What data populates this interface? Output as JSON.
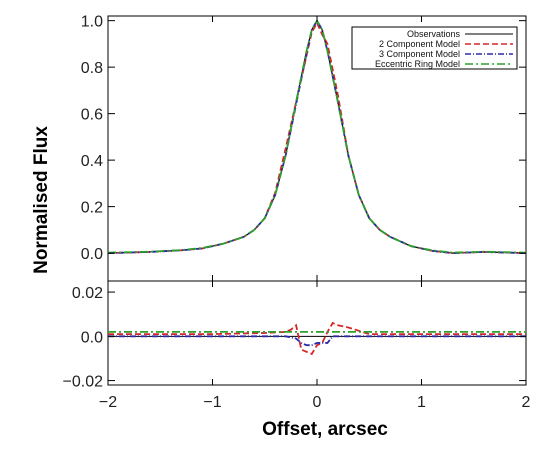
{
  "chart_data": {
    "type": "line",
    "xlabel": "Offset, arcsec",
    "ylabel": "Normalised Flux",
    "legend_position": "top-right",
    "grid": false,
    "panels": [
      {
        "id": "top",
        "xlim": [
          -2,
          2
        ],
        "ylim": [
          -0.12,
          1.02
        ],
        "x_ticks": [
          -2,
          -1,
          0,
          1,
          2
        ],
        "y_ticks": [
          0.0,
          0.2,
          0.4,
          0.6,
          0.8,
          1.0
        ],
        "y_tick_labels": [
          "0.0",
          "0.2",
          "0.4",
          "0.6",
          "0.8",
          "1.0"
        ],
        "series": [
          {
            "name": "Observations",
            "color": "#000000",
            "dash": "",
            "x": [
              -2.0,
              -1.6,
              -1.3,
              -1.1,
              -0.9,
              -0.7,
              -0.6,
              -0.5,
              -0.4,
              -0.3,
              -0.2,
              -0.1,
              -0.05,
              0.0,
              0.05,
              0.1,
              0.2,
              0.3,
              0.4,
              0.5,
              0.6,
              0.7,
              0.9,
              1.1,
              1.3,
              1.6,
              2.0
            ],
            "y": [
              0.0,
              0.005,
              0.012,
              0.02,
              0.04,
              0.07,
              0.1,
              0.15,
              0.25,
              0.42,
              0.65,
              0.87,
              0.96,
              1.0,
              0.96,
              0.87,
              0.65,
              0.42,
              0.25,
              0.15,
              0.1,
              0.07,
              0.03,
              0.01,
              0.0,
              0.005,
              0.0
            ]
          },
          {
            "name": "2 Component Model",
            "color": "#d62728",
            "dash": "6,3",
            "x": [
              -2.0,
              -1.6,
              -1.3,
              -1.1,
              -0.9,
              -0.7,
              -0.6,
              -0.5,
              -0.4,
              -0.3,
              -0.2,
              -0.1,
              -0.05,
              0.0,
              0.05,
              0.1,
              0.2,
              0.3,
              0.4,
              0.5,
              0.6,
              0.7,
              0.9,
              1.1,
              1.3,
              1.6,
              2.0
            ],
            "y": [
              0.0,
              0.005,
              0.012,
              0.02,
              0.04,
              0.07,
              0.1,
              0.15,
              0.26,
              0.45,
              0.65,
              0.85,
              0.95,
              0.99,
              0.94,
              0.9,
              0.68,
              0.42,
              0.25,
              0.15,
              0.1,
              0.07,
              0.03,
              0.01,
              0.0,
              0.005,
              0.0
            ]
          },
          {
            "name": "3 Component Model",
            "color": "#2a2aa8",
            "dash": "6,2,1,2",
            "x": [
              -2.0,
              -1.6,
              -1.3,
              -1.1,
              -0.9,
              -0.7,
              -0.6,
              -0.5,
              -0.4,
              -0.3,
              -0.2,
              -0.1,
              -0.05,
              0.0,
              0.05,
              0.1,
              0.2,
              0.3,
              0.4,
              0.5,
              0.6,
              0.7,
              0.9,
              1.1,
              1.3,
              1.6,
              2.0
            ],
            "y": [
              0.0,
              0.005,
              0.012,
              0.02,
              0.04,
              0.07,
              0.1,
              0.15,
              0.25,
              0.42,
              0.64,
              0.86,
              0.96,
              1.0,
              0.96,
              0.87,
              0.65,
              0.42,
              0.25,
              0.15,
              0.1,
              0.07,
              0.03,
              0.01,
              0.0,
              0.005,
              0.0
            ]
          },
          {
            "name": "Eccentric Ring Model",
            "color": "#2ca02c",
            "dash": "8,3,2,3",
            "x": [
              -2.0,
              -1.6,
              -1.3,
              -1.1,
              -0.9,
              -0.7,
              -0.6,
              -0.5,
              -0.4,
              -0.3,
              -0.2,
              -0.1,
              -0.05,
              0.0,
              0.05,
              0.1,
              0.2,
              0.3,
              0.4,
              0.5,
              0.6,
              0.7,
              0.9,
              1.1,
              1.3,
              1.6,
              2.0
            ],
            "y": [
              0.002,
              0.006,
              0.013,
              0.022,
              0.04,
              0.07,
              0.1,
              0.15,
              0.25,
              0.42,
              0.65,
              0.87,
              0.96,
              1.0,
              0.96,
              0.87,
              0.65,
              0.42,
              0.25,
              0.15,
              0.1,
              0.07,
              0.03,
              0.012,
              0.002,
              0.006,
              0.002
            ]
          }
        ]
      },
      {
        "id": "residuals",
        "xlim": [
          -2,
          2
        ],
        "ylim": [
          -0.022,
          0.025
        ],
        "x_ticks": [
          -2,
          -1,
          0,
          1,
          2
        ],
        "x_tick_labels": [
          "−2",
          "−1",
          "0",
          "1",
          "2"
        ],
        "y_ticks": [
          -0.02,
          0.0,
          0.02
        ],
        "y_tick_labels": [
          "−0.02",
          "0.0",
          "0.02"
        ],
        "zero_line": true,
        "series": [
          {
            "name": "2 Component Model",
            "color": "#d62728",
            "dash": "6,3",
            "x": [
              -2.0,
              -1.0,
              -0.5,
              -0.3,
              -0.25,
              -0.2,
              -0.15,
              -0.1,
              -0.05,
              0.0,
              0.05,
              0.1,
              0.15,
              0.2,
              0.3,
              0.5,
              1.0,
              2.0
            ],
            "y": [
              0.001,
              0.001,
              0.0015,
              0.002,
              0.003,
              0.005,
              -0.006,
              -0.007,
              -0.008,
              -0.004,
              -0.003,
              0.002,
              0.006,
              0.005,
              0.004,
              0.001,
              0.001,
              0.001
            ]
          },
          {
            "name": "3 Component Model",
            "color": "#2a2aa8",
            "dash": "6,2,1,2",
            "x": [
              -2.0,
              -1.0,
              -0.5,
              -0.3,
              -0.2,
              -0.15,
              -0.1,
              -0.05,
              0.0,
              0.05,
              0.1,
              0.15,
              0.2,
              0.3,
              0.5,
              1.0,
              2.0
            ],
            "y": [
              0.0,
              0.0,
              0.0,
              0.0,
              -0.001,
              -0.003,
              -0.004,
              -0.004,
              -0.003,
              -0.003,
              -0.003,
              0.0,
              0.0,
              0.0,
              0.0,
              0.0,
              0.0
            ]
          },
          {
            "name": "Eccentric Ring Model",
            "color": "#2ca02c",
            "dash": "8,3,2,3",
            "x": [
              -2.0,
              -1.0,
              -0.5,
              0.0,
              0.5,
              1.0,
              2.0
            ],
            "y": [
              0.002,
              0.002,
              0.002,
              0.002,
              0.002,
              0.002,
              0.002
            ]
          }
        ]
      }
    ]
  }
}
